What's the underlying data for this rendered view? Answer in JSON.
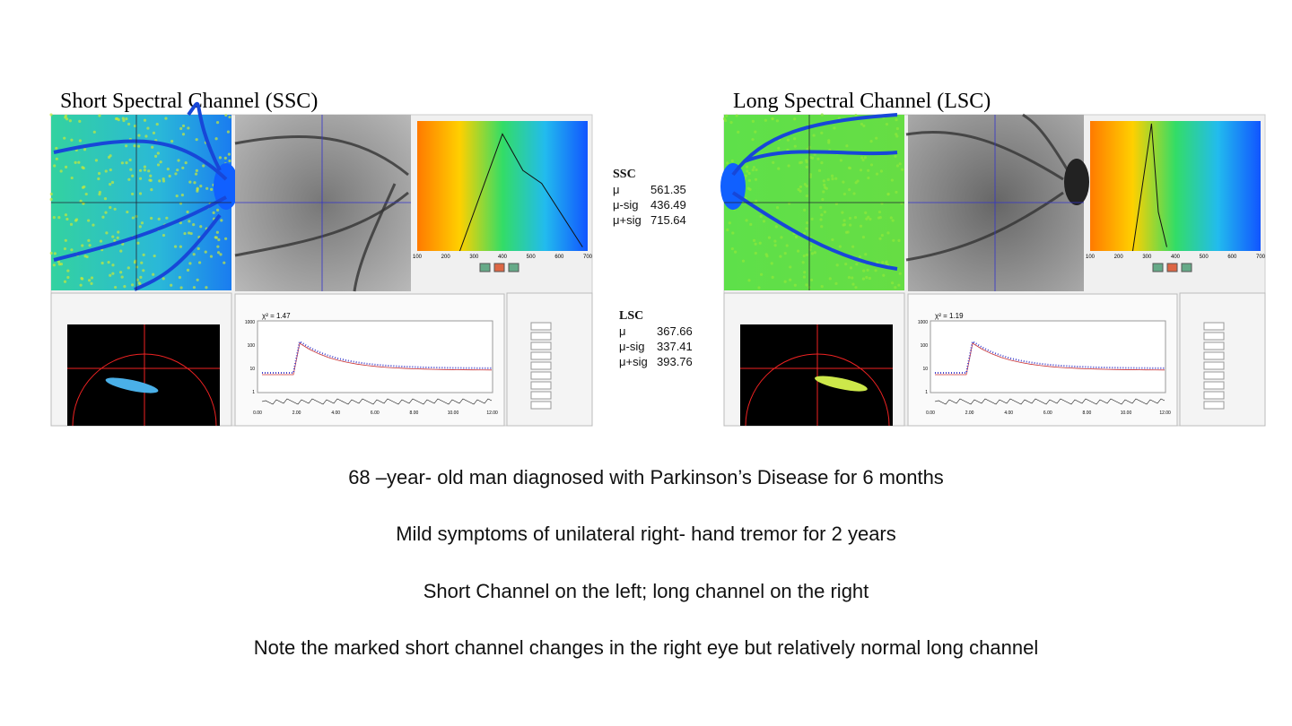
{
  "panels": [
    {
      "title": "Short Spectral Channel (SSC)",
      "chi": "χ² = 1.47",
      "hist_ticks": [
        "100",
        "200",
        "300",
        "400",
        "500",
        "600",
        "700"
      ],
      "decay_ticks": [
        "0.00",
        "2.00",
        "4.00",
        "6.00",
        "8.00",
        "10.00",
        "12.00"
      ],
      "log_ticks": [
        "1000",
        "100",
        "10",
        "1"
      ]
    },
    {
      "title": "Long Spectral Channel (LSC)",
      "chi": "χ² = 1.19",
      "hist_ticks": [
        "100",
        "200",
        "300",
        "400",
        "500",
        "600",
        "700"
      ],
      "decay_ticks": [
        "0.00",
        "2.00",
        "4.00",
        "6.00",
        "8.00",
        "10.00",
        "12.00"
      ],
      "log_ticks": [
        "1000",
        "100",
        "10",
        "1"
      ]
    }
  ],
  "stats": [
    {
      "heading": "SSC",
      "rows": [
        [
          "μ",
          "561.35"
        ],
        [
          "μ-sig",
          "436.49"
        ],
        [
          "μ+sig",
          "715.64"
        ]
      ]
    },
    {
      "heading": "LSC",
      "rows": [
        [
          "μ",
          "367.66"
        ],
        [
          "μ-sig",
          "337.41"
        ],
        [
          "μ+sig",
          "393.76"
        ]
      ]
    }
  ],
  "captions": [
    "68 –year- old man diagnosed with Parkinson’s Disease for 6 months",
    "Mild symptoms of unilateral right- hand tremor for 2 years",
    "Short Channel on the left; long channel on the right",
    "Note the marked short channel changes in the right eye but relatively normal long channel"
  ]
}
